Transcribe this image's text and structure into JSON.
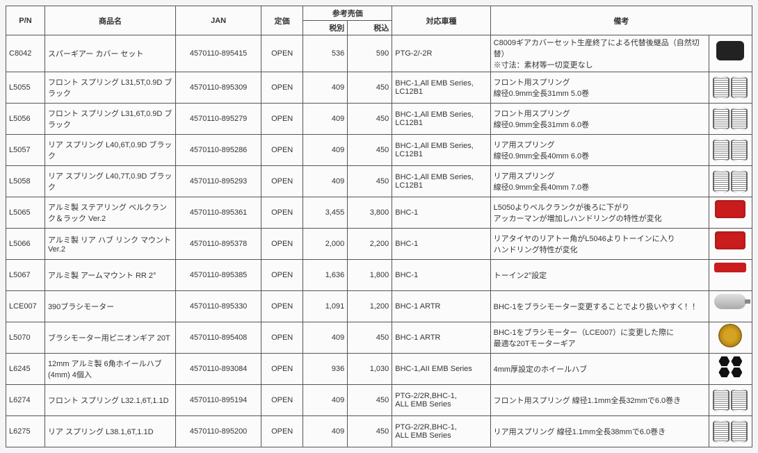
{
  "headers": {
    "pn": "P/N",
    "name": "商品名",
    "jan": "JAN",
    "price": "定価",
    "ref_group": "参考売価",
    "tax_ex": "税別",
    "tax_in": "税込",
    "car": "対応車種",
    "note": "備考"
  },
  "rows": [
    {
      "pn": "C8042",
      "name": "スパーギアー カバー セット",
      "jan": "4570110-895415",
      "price": "OPEN",
      "tax_ex": "536",
      "tax_in": "590",
      "car": "PTG-2/-2R",
      "note": "C8009ギアカバーセット生産終了による代替後継品（自然切替）\n※寸法：素材等一切変更なし",
      "thumb": "blackbox"
    },
    {
      "pn": "L5055",
      "name": "フロント スプリング L31,5T,0.9D ブラック",
      "jan": "4570110-895309",
      "price": "OPEN",
      "tax_ex": "409",
      "tax_in": "450",
      "car": "BHC-1,All EMB Series,\nLC12B1",
      "note": "フロント用スプリング\n線径0.9mm全長31mm  5.0巻",
      "thumb": "spring"
    },
    {
      "pn": "L5056",
      "name": "フロント スプリング L31,6T,0.9D ブラック",
      "jan": "4570110-895279",
      "price": "OPEN",
      "tax_ex": "409",
      "tax_in": "450",
      "car": "BHC-1,All EMB Series,\nLC12B1",
      "note": "フロント用スプリング\n線径0.9mm全長31mm 6.0巻",
      "thumb": "spring"
    },
    {
      "pn": "L5057",
      "name": "リア スプリング L40,6T,0.9D ブラック",
      "jan": "4570110-895286",
      "price": "OPEN",
      "tax_ex": "409",
      "tax_in": "450",
      "car": "BHC-1,All EMB Series,\nLC12B1",
      "note": "リア用スプリング\n線径0.9mm全長40mm  6.0巻",
      "thumb": "spring"
    },
    {
      "pn": "L5058",
      "name": "リア スプリング L40,7T,0.9D ブラック",
      "jan": "4570110-895293",
      "price": "OPEN",
      "tax_ex": "409",
      "tax_in": "450",
      "car": "BHC-1,All EMB Series,\nLC12B1",
      "note": "リア用スプリング\n線径0.9mm全長40mm 7.0巻",
      "thumb": "spring"
    },
    {
      "pn": "L5065",
      "name": "アルミ製  ステアリング ベルクランク＆ラック Ver.2",
      "jan": "4570110-895361",
      "price": "OPEN",
      "tax_ex": "3,455",
      "tax_in": "3,800",
      "car": "BHC-1",
      "note": "L5050よりベルクランクが後ろに下がり\nアッカーマンが増加しハンドリングの特性が変化",
      "thumb": "redpart"
    },
    {
      "pn": "L5066",
      "name": "アルミ製  リア ハブ  リンク マウント Ver.2",
      "jan": "4570110-895378",
      "price": "OPEN",
      "tax_ex": "2,000",
      "tax_in": "2,200",
      "car": "BHC-1",
      "note": "リアタイヤのリアトー角がL5046よりトーインに入り\nハンドリング特性が変化",
      "thumb": "redpart"
    },
    {
      "pn": "L5067",
      "name": "アルミ製  アームマウント RR 2°",
      "jan": "4570110-895385",
      "price": "OPEN",
      "tax_ex": "1,636",
      "tax_in": "1,800",
      "car": "BHC-1",
      "note": "トーイン2°設定",
      "thumb": "redbar"
    },
    {
      "pn": "LCE007",
      "name": "390ブラシモーター",
      "jan": "4570110-895330",
      "price": "OPEN",
      "tax_ex": "1,091",
      "tax_in": "1,200",
      "car": "BHC-1  ARTR",
      "note": "BHC-1をブラシモーター変更することでより扱いやすく！！",
      "thumb": "motor"
    },
    {
      "pn": "L5070",
      "name": "ブラシモーター用ピニオンギア 20T",
      "jan": "4570110-895408",
      "price": "OPEN",
      "tax_ex": "409",
      "tax_in": "450",
      "car": "BHC-1  ARTR",
      "note": "BHC-1をブラシモーター（LCE007）に変更した際に\n最適な20Tモーターギア",
      "thumb": "gear"
    },
    {
      "pn": "L6245",
      "name": "12mm アルミ製 6角ホイールハブ(4mm) 4個入",
      "jan": "4570110-893084",
      "price": "OPEN",
      "tax_ex": "936",
      "tax_in": "1,030",
      "car": "BHC-1,AII EMB Series",
      "note": "4mm厚設定のホイールハブ",
      "thumb": "hex"
    },
    {
      "pn": "L6274",
      "name": "フロント スプリング L32.1,6T,1.1D",
      "jan": "4570110-895194",
      "price": "OPEN",
      "tax_ex": "409",
      "tax_in": "450",
      "car": "PTG-2/2R,BHC-1,\nALL EMB Series",
      "note": "フロント用スプリング 線径1.1mm全長32mmで6.0巻き",
      "thumb": "spring"
    },
    {
      "pn": "L6275",
      "name": "リア スプリング L38.1,6T,1.1D",
      "jan": "4570110-895200",
      "price": "OPEN",
      "tax_ex": "409",
      "tax_in": "450",
      "car": "PTG-2/2R,BHC-1,\nALL EMB Series",
      "note": "リア用スプリング 線径1.1mm全長38mmで6.0巻き",
      "thumb": "spring"
    }
  ]
}
